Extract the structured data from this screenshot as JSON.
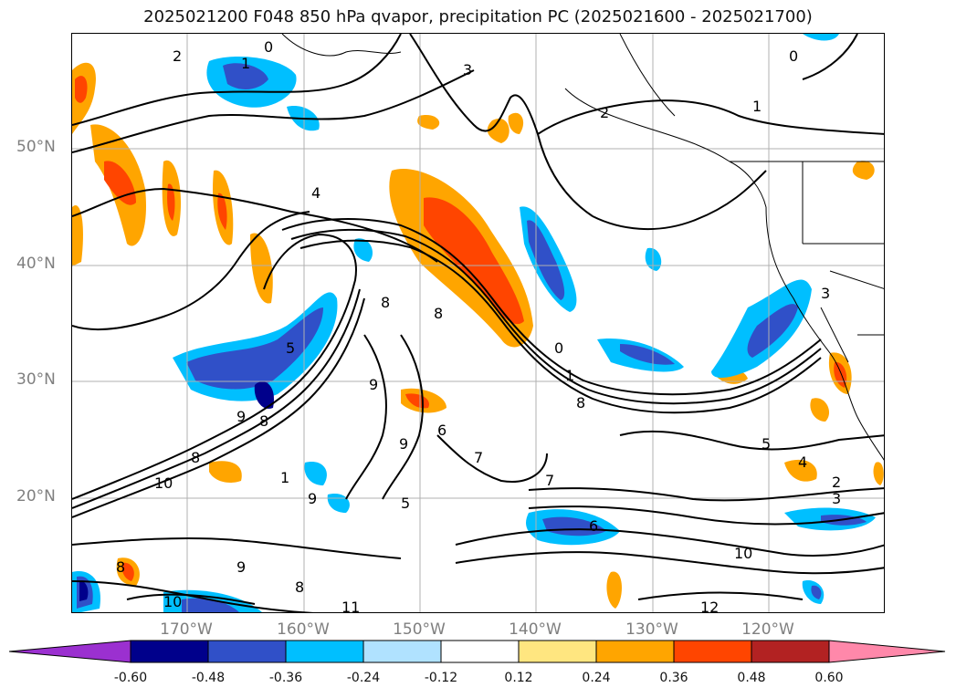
{
  "title": "2025021200 F048 850 hPa qvapor, precipitation PC (2025021600 - 2025021700)",
  "map": {
    "lat_labels": [
      "50°N",
      "40°N",
      "30°N",
      "20°N"
    ],
    "lon_labels": [
      "170°W",
      "160°W",
      "150°W",
      "140°W",
      "130°W",
      "120°W"
    ],
    "contour_labels": [
      "0",
      "1",
      "2",
      "3",
      "0",
      "1",
      "2",
      "4",
      "8",
      "5",
      "8",
      "9",
      "6",
      "7",
      "0",
      "1",
      "8",
      "7",
      "9",
      "5",
      "4",
      "2",
      "3",
      "10",
      "8",
      "9",
      "10",
      "11",
      "8",
      "12",
      "10",
      "9",
      "6",
      "1",
      "9",
      "8",
      "8",
      "3",
      "5"
    ]
  },
  "colorbar": {
    "ticks": [
      "-0.60",
      "-0.48",
      "-0.36",
      "-0.24",
      "-0.12",
      "0.12",
      "0.24",
      "0.36",
      "0.48",
      "0.60"
    ],
    "colors": [
      "#9b30d0",
      "#00008b",
      "#3050c8",
      "#00bfff",
      "#b0e2ff",
      "#ffffff",
      "#ffe680",
      "#ffa500",
      "#ff4500",
      "#b22222",
      "#ff88aa"
    ]
  }
}
